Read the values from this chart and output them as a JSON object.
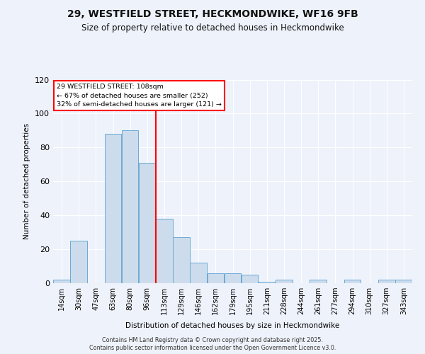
{
  "title": "29, WESTFIELD STREET, HECKMONDWIKE, WF16 9FB",
  "subtitle": "Size of property relative to detached houses in Heckmondwike",
  "xlabel": "Distribution of detached houses by size in Heckmondwike",
  "ylabel": "Number of detached properties",
  "categories": [
    "14sqm",
    "30sqm",
    "47sqm",
    "63sqm",
    "80sqm",
    "96sqm",
    "113sqm",
    "129sqm",
    "146sqm",
    "162sqm",
    "179sqm",
    "195sqm",
    "211sqm",
    "228sqm",
    "244sqm",
    "261sqm",
    "277sqm",
    "294sqm",
    "310sqm",
    "327sqm",
    "343sqm"
  ],
  "values": [
    2,
    25,
    0,
    88,
    90,
    71,
    38,
    27,
    12,
    6,
    6,
    5,
    1,
    2,
    0,
    2,
    0,
    2,
    0,
    2,
    2
  ],
  "bar_color": "#cddcec",
  "bar_edge_color": "#6aaad4",
  "marker_bin_index": 6,
  "marker_color": "red",
  "annotation_line1": "29 WESTFIELD STREET: 108sqm",
  "annotation_line2": "← 67% of detached houses are smaller (252)",
  "annotation_line3": "32% of semi-detached houses are larger (121) →",
  "box_facecolor": "white",
  "box_edgecolor": "red",
  "ylim": [
    0,
    120
  ],
  "yticks": [
    0,
    20,
    40,
    60,
    80,
    100,
    120
  ],
  "background_color": "#eef2fb",
  "plot_bg_color": "#eef2fb",
  "grid_color": "#ffffff",
  "title_fontsize": 10,
  "subtitle_fontsize": 8.5,
  "footer1": "Contains HM Land Registry data © Crown copyright and database right 2025.",
  "footer2": "Contains public sector information licensed under the Open Government Licence v3.0."
}
